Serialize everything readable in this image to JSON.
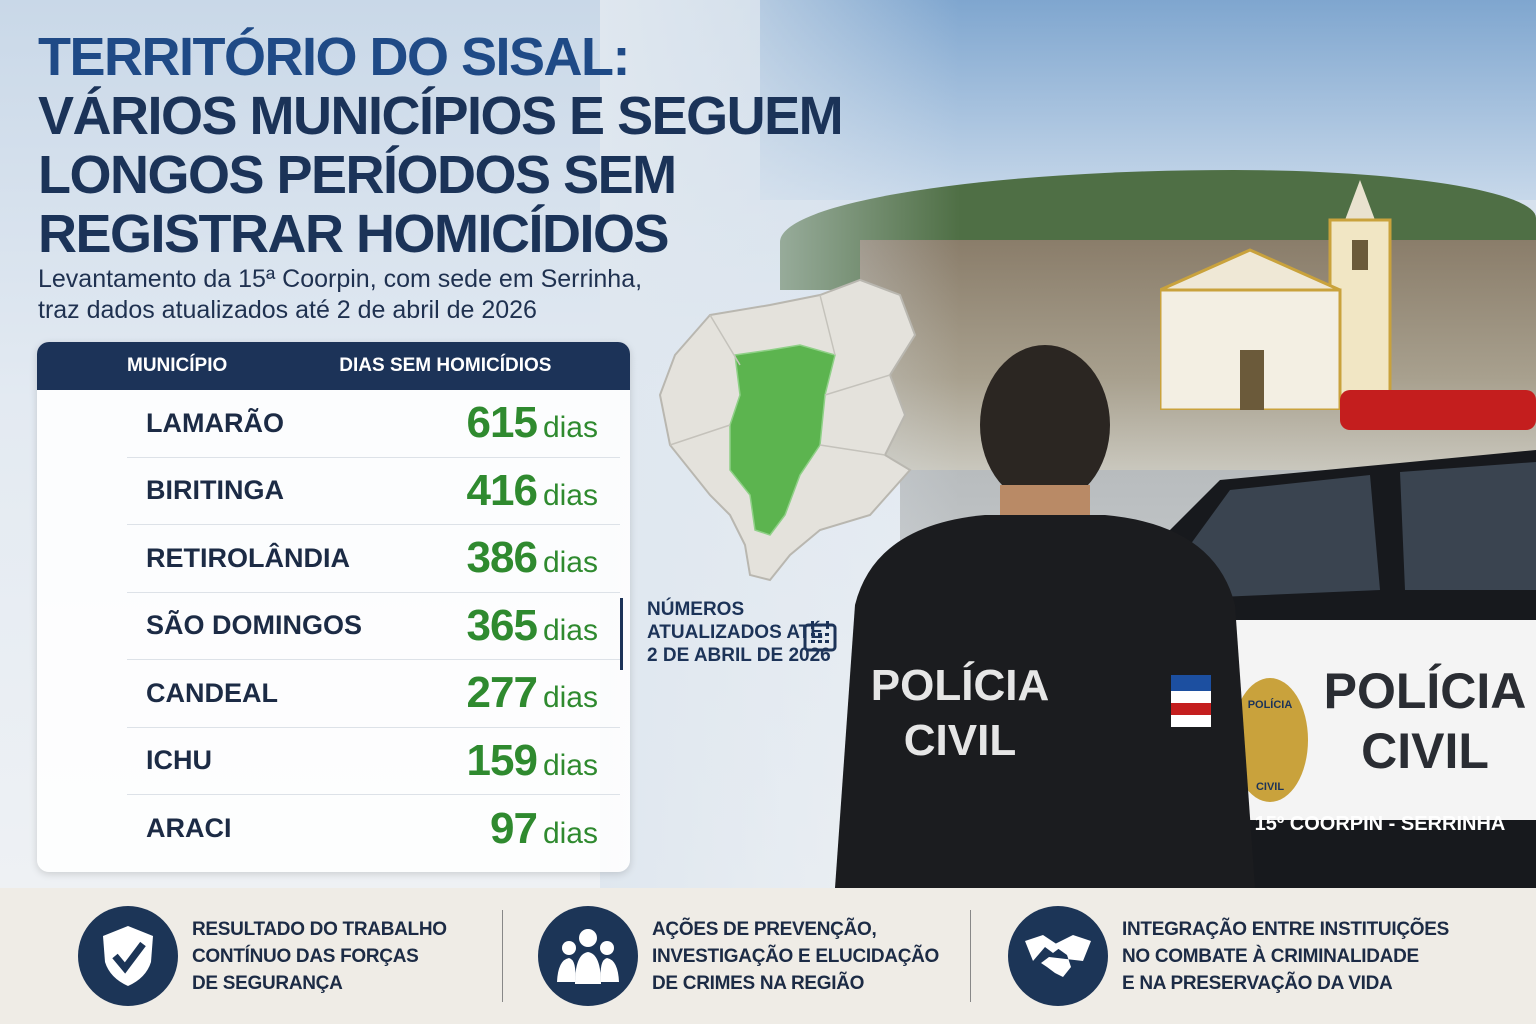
{
  "title": {
    "line1": "TERRITÓRIO DO SISAL:",
    "line2": "VÁRIOS MUNICÍPIOS E SEGUEM",
    "line3": "LONGOS PERÍODOS SEM",
    "line4": "REGISTRAR HOMICÍDIOS"
  },
  "subtitle": {
    "line1": "Levantamento da 15ª Coorpin, com sede em Serrinha,",
    "line2": "traz dados atualizados até 2 de abril de 2026"
  },
  "table": {
    "headers": [
      "MUNICÍPIO",
      "DIAS SEM HOMICÍDIOS"
    ],
    "unit": "dias",
    "rows": [
      {
        "name": "LAMARÃO",
        "days": "615"
      },
      {
        "name": "BIRITINGA",
        "days": "416"
      },
      {
        "name": "RETIROLÂNDIA",
        "days": "386"
      },
      {
        "name": "SÃO DOMINGOS",
        "days": "365"
      },
      {
        "name": "CANDEAL",
        "days": "277"
      },
      {
        "name": "ICHU",
        "days": "159"
      },
      {
        "name": "ARACI",
        "days": "97"
      }
    ]
  },
  "callout": {
    "line1": "NÚMEROS",
    "line2": "ATUALIZADOS ATÉ",
    "line3": "2 DE ABRIL DE 2026",
    "icon": "calendar-icon"
  },
  "photo": {
    "vest_text_1": "POLÍCIA",
    "vest_text_2": "CIVIL",
    "car_text_1": "POLÍCIA",
    "car_text_2": "CIVIL",
    "car_unit": "15º COORPIN - SERRINHA",
    "badge_top": "POLÍCIA",
    "badge_bottom": "CIVIL"
  },
  "footer": {
    "items": [
      {
        "icon": "shield-check-icon",
        "lines": [
          "RESULTADO DO TRABALHO",
          "CONTÍNUO DAS FORÇAS",
          "DE SEGURANÇA"
        ]
      },
      {
        "icon": "people-group-icon",
        "lines": [
          "AÇÕES DE PREVENÇÃO,",
          "INVESTIGAÇÃO E ELUCIDAÇÃO",
          "DE CRIMES NA REGIÃO"
        ]
      },
      {
        "icon": "handshake-icon",
        "lines": [
          "INTEGRAÇÃO ENTRE INSTITUIÇÕES",
          "NO COMBATE À CRIMINALIDADE",
          "E NA PRESERVAÇÃO DA VIDA"
        ]
      }
    ]
  },
  "colors": {
    "navy": "#1c3358",
    "green": "#2f8a2f",
    "map_green": "#5cb44f",
    "footer_bg": "#efece6"
  }
}
